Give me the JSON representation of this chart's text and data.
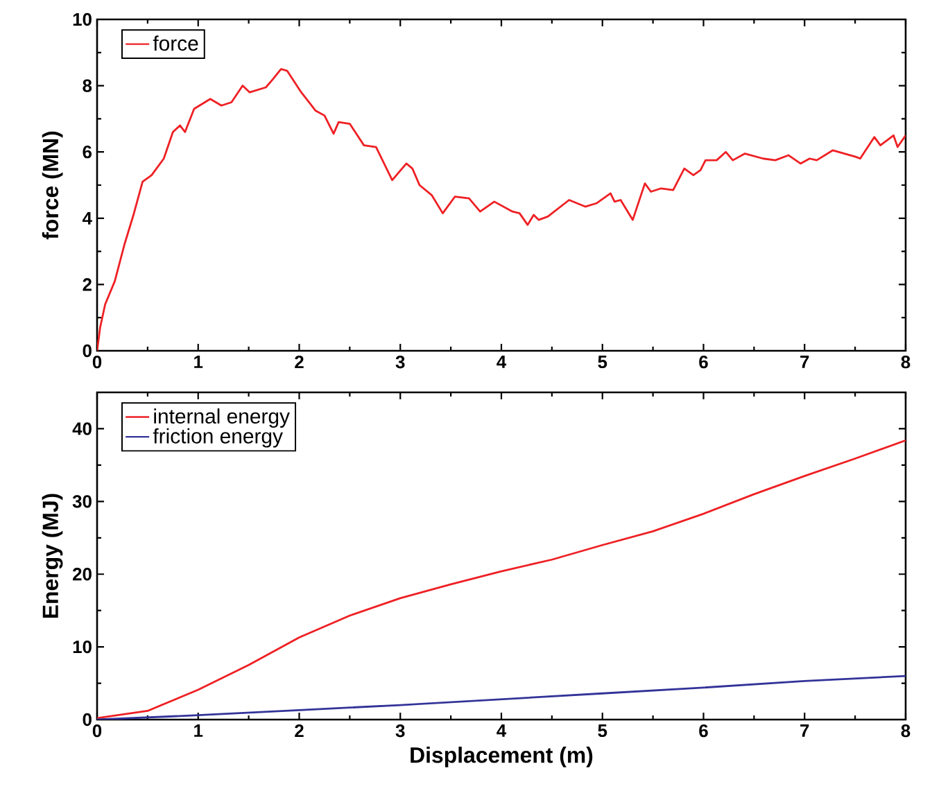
{
  "chart_data": [
    {
      "type": "line",
      "ylabel": "force (MN)",
      "xlim": [
        0,
        8
      ],
      "xticks": [
        0,
        1,
        2,
        3,
        4,
        5,
        6,
        7,
        8
      ],
      "ylim": [
        0,
        10
      ],
      "yticks": [
        0,
        2,
        4,
        6,
        8,
        10
      ],
      "legend": "top left",
      "grid": false,
      "series": [
        {
          "name": "force",
          "color": "#ee2024",
          "x": [
            0,
            0.03,
            0.08,
            0.175,
            0.27,
            0.36,
            0.45,
            0.54,
            0.66,
            0.75,
            0.82,
            0.87,
            0.96,
            1.12,
            1.23,
            1.33,
            1.44,
            1.51,
            1.67,
            1.74,
            1.82,
            1.88,
            2.02,
            2.11,
            2.16,
            2.25,
            2.34,
            2.39,
            2.5,
            2.64,
            2.76,
            2.92,
            3.06,
            3.12,
            3.19,
            3.31,
            3.42,
            3.54,
            3.68,
            3.79,
            3.93,
            4.11,
            4.18,
            4.26,
            4.32,
            4.37,
            4.46,
            4.67,
            4.83,
            4.94,
            5.08,
            5.12,
            5.18,
            5.3,
            5.42,
            5.48,
            5.58,
            5.7,
            5.81,
            5.9,
            5.97,
            6.02,
            6.13,
            6.22,
            6.29,
            6.41,
            6.59,
            6.71,
            6.84,
            6.96,
            7.05,
            7.12,
            7.28,
            7.51,
            7.55,
            7.69,
            7.75,
            7.88,
            7.92,
            8.0
          ],
          "values": [
            0,
            0.7,
            1.4,
            2.1,
            3.2,
            4.1,
            5.1,
            5.3,
            5.8,
            6.6,
            6.8,
            6.6,
            7.3,
            7.6,
            7.4,
            7.5,
            8.0,
            7.8,
            7.95,
            8.2,
            8.5,
            8.45,
            7.8,
            7.45,
            7.25,
            7.1,
            6.55,
            6.9,
            6.85,
            6.2,
            6.15,
            5.15,
            5.65,
            5.5,
            5.0,
            4.7,
            4.15,
            4.65,
            4.6,
            4.2,
            4.5,
            4.2,
            4.15,
            3.8,
            4.1,
            3.95,
            4.05,
            4.55,
            4.35,
            4.45,
            4.75,
            4.5,
            4.55,
            3.95,
            5.05,
            4.8,
            4.9,
            4.85,
            5.5,
            5.3,
            5.45,
            5.75,
            5.75,
            6.0,
            5.75,
            5.95,
            5.8,
            5.75,
            5.9,
            5.65,
            5.8,
            5.75,
            6.05,
            5.85,
            5.8,
            6.45,
            6.2,
            6.5,
            6.15,
            6.5
          ]
        }
      ]
    },
    {
      "type": "line",
      "xlabel": "Displacement (m)",
      "ylabel": "Energy (MJ)",
      "xlim": [
        0,
        8
      ],
      "xticks": [
        0,
        1,
        2,
        3,
        4,
        5,
        6,
        7,
        8
      ],
      "ylim": [
        0,
        45
      ],
      "yticks": [
        0,
        10,
        20,
        30,
        40
      ],
      "legend": "top left",
      "grid": false,
      "series": [
        {
          "name": "internal energy",
          "color": "#ee2024",
          "x": [
            0,
            0.5,
            1,
            1.5,
            2,
            2.5,
            3,
            3.5,
            4,
            4.5,
            5,
            5.5,
            6,
            6.5,
            7,
            7.5,
            8
          ],
          "values": [
            0.2,
            1.2,
            4.1,
            7.5,
            11.3,
            14.3,
            16.7,
            18.6,
            20.4,
            22.0,
            24.0,
            25.9,
            28.3,
            31.0,
            33.5,
            35.9,
            38.4
          ]
        },
        {
          "name": "friction  energy",
          "color": "#333399",
          "x": [
            0,
            1,
            2,
            3,
            4,
            5,
            6,
            7,
            8
          ],
          "values": [
            0,
            0.6,
            1.3,
            2.0,
            2.8,
            3.6,
            4.4,
            5.3,
            6.0
          ]
        }
      ]
    }
  ]
}
